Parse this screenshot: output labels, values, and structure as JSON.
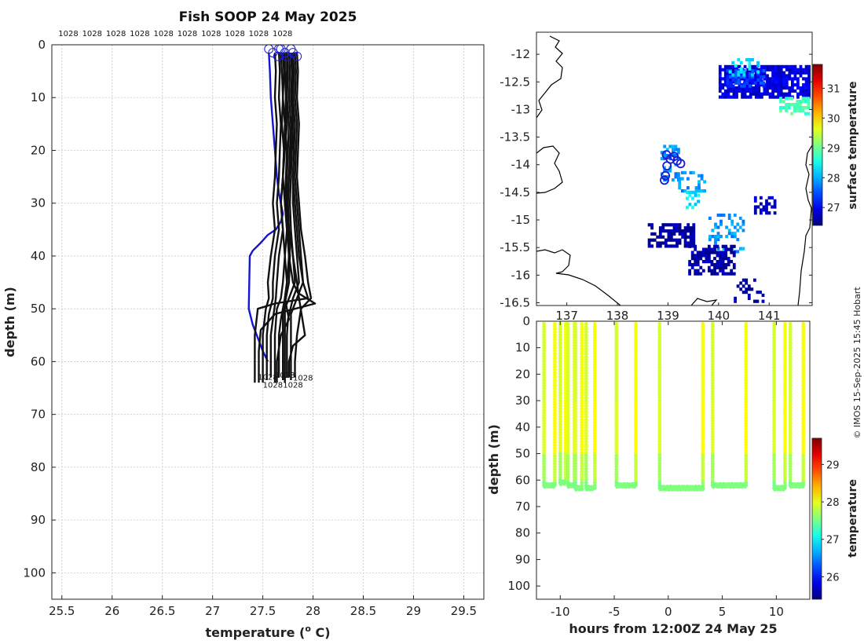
{
  "figure": {
    "title": "Fish SOOP 24 May 2025",
    "credit": "© IMOS 15-Sep-2025 15:45 Hobart"
  },
  "chart_data": [
    {
      "id": "profiles",
      "type": "line",
      "xlabel": "temperature (° C)",
      "xlabel_prefix": "temperature (",
      "xlabel_degree": "o",
      "xlabel_suffix": " C)",
      "ylabel": "depth (m)",
      "xlim": [
        25.4,
        29.7
      ],
      "ylim": [
        0,
        105
      ],
      "y_reversed": true,
      "grid": true,
      "xticks": [
        25.5,
        26,
        26.5,
        27,
        27.5,
        28,
        28.5,
        29,
        29.5
      ],
      "xtick_labels": [
        "25.5",
        "26",
        "26.5",
        "27",
        "27.5",
        "28",
        "28.5",
        "29",
        "29.5"
      ],
      "yticks": [
        0,
        10,
        20,
        30,
        40,
        50,
        60,
        70,
        80,
        90,
        100
      ],
      "ytick_labels": [
        "0",
        "10",
        "20",
        "30",
        "40",
        "50",
        "60",
        "70",
        "80",
        "90",
        "100"
      ],
      "top_labels": [
        "1028",
        "1028",
        "1028",
        "1028",
        "1028",
        "1028",
        "1028",
        "1028",
        "1028",
        "1028"
      ],
      "end_labels": [
        {
          "text": "1028",
          "t": 27.55,
          "d": 62.8
        },
        {
          "text": "1028",
          "t": 27.72,
          "d": 62.5
        },
        {
          "text": "1028",
          "t": 27.9,
          "d": 63.0
        },
        {
          "text": "1028",
          "t": 27.6,
          "d": 64.3
        },
        {
          "text": "1028",
          "t": 27.8,
          "d": 64.3
        }
      ],
      "series": [
        {
          "color": "#1515d4",
          "t": [
            27.56,
            27.57,
            27.58,
            27.6,
            27.62,
            27.64,
            27.66,
            27.68,
            27.7,
            27.68,
            27.63,
            27.55,
            27.48,
            27.4,
            27.37,
            27.36,
            27.4,
            27.46,
            27.5,
            27.55
          ],
          "d": [
            1.5,
            5,
            10,
            15,
            20,
            25,
            28,
            30,
            32,
            33.5,
            35,
            36,
            37.5,
            39,
            40,
            50,
            53,
            56,
            58,
            60
          ]
        },
        {
          "color": "#111111",
          "t": [
            27.62,
            27.63,
            27.62,
            27.64,
            27.63,
            27.62,
            27.6,
            27.62,
            27.58,
            27.55,
            27.56,
            27.53,
            27.5,
            27.5,
            27.5
          ],
          "d": [
            1.5,
            5,
            10,
            15,
            20,
            25,
            30,
            35,
            40,
            45,
            48,
            50,
            55,
            60,
            64
          ]
        },
        {
          "color": "#111111",
          "t": [
            27.66,
            27.67,
            27.66,
            27.68,
            27.67,
            27.66,
            27.64,
            27.66,
            27.62,
            27.6,
            27.6,
            27.56,
            27.54,
            27.54,
            27.54
          ],
          "d": [
            1.5,
            5,
            10,
            15,
            20,
            25,
            30,
            35,
            40,
            45,
            48,
            51,
            55,
            60,
            63.5
          ]
        },
        {
          "color": "#111111",
          "t": [
            27.7,
            27.71,
            27.7,
            27.72,
            27.71,
            27.7,
            27.68,
            27.7,
            27.66,
            27.64,
            27.63,
            27.6,
            27.58,
            27.58,
            27.58
          ],
          "d": [
            1.5,
            5,
            10,
            15,
            20,
            25,
            30,
            35,
            40,
            45,
            48,
            52,
            55,
            60,
            63
          ]
        },
        {
          "color": "#111111",
          "t": [
            27.72,
            27.72,
            27.73,
            27.72,
            27.74,
            27.73,
            27.72,
            27.74,
            27.72,
            27.7,
            27.68,
            27.64,
            27.62,
            27.62,
            27.62
          ],
          "d": [
            1.5,
            5,
            10,
            15,
            20,
            25,
            30,
            35,
            40,
            45,
            48,
            50,
            55,
            60,
            64
          ]
        },
        {
          "color": "#111111",
          "t": [
            27.74,
            27.75,
            27.74,
            27.76,
            27.75,
            27.74,
            27.73,
            27.75,
            27.76,
            27.74,
            27.72,
            27.68,
            27.66,
            27.66,
            27.66
          ],
          "d": [
            1.5,
            5,
            10,
            15,
            20,
            25,
            30,
            35,
            40,
            45,
            48,
            52,
            55,
            60,
            63
          ]
        },
        {
          "color": "#111111",
          "t": [
            27.76,
            27.77,
            27.76,
            27.78,
            27.77,
            27.76,
            27.75,
            27.76,
            27.77,
            27.76,
            27.73,
            27.7,
            27.7,
            27.7,
            27.7
          ],
          "d": [
            1.5,
            5,
            10,
            15,
            20,
            25,
            30,
            35,
            40,
            45,
            48,
            51,
            55,
            60,
            63.5
          ]
        },
        {
          "color": "#111111",
          "t": [
            27.78,
            27.79,
            27.78,
            27.8,
            27.79,
            27.78,
            27.77,
            27.78,
            27.8,
            27.82,
            27.76,
            27.72,
            27.72,
            27.72,
            27.72
          ],
          "d": [
            1.5,
            5,
            10,
            15,
            20,
            25,
            30,
            35,
            40,
            45,
            48,
            50,
            55,
            60,
            64
          ]
        },
        {
          "color": "#111111",
          "t": [
            27.8,
            27.81,
            27.8,
            27.82,
            27.81,
            27.8,
            27.8,
            27.82,
            27.84,
            27.86,
            27.8,
            27.75,
            27.74,
            27.74,
            27.74
          ],
          "d": [
            1.5,
            5,
            10,
            15,
            20,
            25,
            30,
            35,
            40,
            45,
            48,
            52,
            55,
            60,
            63
          ]
        },
        {
          "color": "#111111",
          "t": [
            27.82,
            27.83,
            27.82,
            27.84,
            27.83,
            27.82,
            27.84,
            27.86,
            27.88,
            27.9,
            27.84,
            27.78,
            27.78,
            27.78,
            27.78
          ],
          "d": [
            1.5,
            5,
            10,
            15,
            20,
            25,
            30,
            35,
            40,
            45,
            48,
            51,
            55,
            60,
            63.5
          ]
        },
        {
          "color": "#111111",
          "t": [
            27.84,
            27.85,
            27.84,
            27.86,
            27.85,
            27.84,
            27.86,
            27.88,
            27.92,
            27.95,
            27.98,
            27.88,
            27.84,
            27.82,
            27.82
          ],
          "d": [
            1.5,
            5,
            10,
            15,
            20,
            25,
            30,
            35,
            40,
            45,
            48,
            50,
            55,
            60,
            63
          ]
        },
        {
          "color": "#111111",
          "t": [
            27.78,
            27.79,
            27.8,
            27.79,
            27.81,
            27.8,
            27.82,
            27.84,
            27.86,
            27.9,
            27.95,
            27.62,
            27.45,
            27.42,
            27.42
          ],
          "d": [
            1.5,
            5,
            10,
            15,
            20,
            25,
            30,
            35,
            40,
            45,
            48,
            49,
            50,
            55,
            64
          ]
        },
        {
          "color": "#111111",
          "t": [
            27.68,
            27.69,
            27.7,
            27.69,
            27.71,
            27.7,
            27.72,
            27.74,
            27.76,
            27.8,
            27.85,
            28.02,
            27.62,
            27.48,
            27.46,
            27.46
          ],
          "d": [
            1.5,
            5,
            10,
            15,
            20,
            25,
            30,
            35,
            40,
            45,
            47,
            49,
            51,
            54,
            58,
            64
          ]
        },
        {
          "color": "#111111",
          "t": [
            27.74,
            27.74,
            27.73,
            27.74,
            27.72,
            27.7,
            27.68,
            27.7,
            27.72,
            27.74,
            27.72,
            27.76,
            27.68,
            27.64,
            27.64
          ],
          "d": [
            1.5,
            5,
            10,
            15,
            20,
            25,
            30,
            35,
            40,
            45,
            48,
            52,
            55,
            60,
            64
          ]
        },
        {
          "color": "#111111",
          "t": [
            27.8,
            27.8,
            27.79,
            27.8,
            27.78,
            27.76,
            27.74,
            27.76,
            27.8,
            27.84,
            27.86,
            27.92,
            27.8,
            27.76,
            27.76
          ],
          "d": [
            1.5,
            5,
            10,
            15,
            20,
            25,
            30,
            35,
            40,
            45,
            48,
            55,
            57,
            60,
            63
          ]
        }
      ],
      "surface_markers_t": [
        27.56,
        27.6,
        27.65,
        27.68,
        27.72,
        27.74,
        27.78,
        27.8,
        27.84,
        27.66
      ]
    },
    {
      "id": "map",
      "type": "heatmap",
      "colorbar_label": "surface temperature",
      "xlim": [
        136.4,
        141.85
      ],
      "ylim": [
        -16.55,
        -11.6
      ],
      "yticks": [
        -12,
        -12.5,
        -13,
        -13.5,
        -14,
        -14.5,
        -15,
        -15.5,
        -16,
        -16.5
      ],
      "ytick_labels": [
        "-12",
        "-12.5",
        "-13",
        "-13.5",
        "-14",
        "-14.5",
        "-15",
        "-15.5",
        "-16",
        "-16.5"
      ],
      "xticks": [
        137,
        138,
        139,
        140,
        141
      ],
      "xtick_labels": [
        "137",
        "138",
        "139",
        "140",
        "141"
      ],
      "cbar_range": [
        26.4,
        31.8
      ],
      "cbar_ticks": [
        27,
        28,
        29,
        30,
        31
      ],
      "cbar_tick_labels": [
        "27",
        "28",
        "29",
        "30",
        "31"
      ],
      "patches": [
        {
          "lon": [
            140.0,
            141.8
          ],
          "lat": [
            -12.8,
            -12.2
          ],
          "temp": 26.9,
          "density": 0.85
        },
        {
          "lon": [
            140.15,
            140.9
          ],
          "lat": [
            -12.6,
            -12.3
          ],
          "temp": 27.4,
          "density": 0.6
        },
        {
          "lon": [
            140.2,
            140.8
          ],
          "lat": [
            -12.4,
            -12.1
          ],
          "temp": 28.3,
          "density": 0.35
        },
        {
          "lon": [
            141.2,
            141.8
          ],
          "lat": [
            -13.1,
            -12.8
          ],
          "temp": 28.8,
          "density": 0.5
        },
        {
          "lon": [
            138.85,
            139.2
          ],
          "lat": [
            -14.3,
            -13.65
          ],
          "temp": 27.9,
          "density": 0.55
        },
        {
          "lon": [
            139.2,
            139.7
          ],
          "lat": [
            -14.5,
            -14.15
          ],
          "temp": 27.9,
          "density": 0.45
        },
        {
          "lon": [
            139.35,
            139.6
          ],
          "lat": [
            -14.8,
            -14.5
          ],
          "temp": 28.3,
          "density": 0.4
        },
        {
          "lon": [
            139.8,
            140.5
          ],
          "lat": [
            -15.6,
            -14.9
          ],
          "temp": 27.9,
          "density": 0.3
        },
        {
          "lon": [
            138.6,
            139.5
          ],
          "lat": [
            -15.5,
            -15.1
          ],
          "temp": 26.6,
          "density": 0.65
        },
        {
          "lon": [
            139.4,
            140.3
          ],
          "lat": [
            -16.0,
            -15.5
          ],
          "temp": 26.6,
          "density": 0.7
        },
        {
          "lon": [
            140.7,
            141.1
          ],
          "lat": [
            -14.9,
            -14.6
          ],
          "temp": 26.8,
          "density": 0.55
        },
        {
          "lon": [
            140.3,
            140.9
          ],
          "lat": [
            -16.5,
            -16.1
          ],
          "temp": 26.6,
          "density": 0.3
        }
      ],
      "track": [
        {
          "lon": 138.93,
          "lat": -14.28
        },
        {
          "lon": 138.95,
          "lat": -14.2
        },
        {
          "lon": 138.98,
          "lat": -14.02
        },
        {
          "lon": 139.05,
          "lat": -13.9
        },
        {
          "lon": 139.18,
          "lat": -13.93
        },
        {
          "lon": 139.25,
          "lat": -13.98
        },
        {
          "lon": 139.12,
          "lat": -13.85
        },
        {
          "lon": 138.97,
          "lat": -13.82
        }
      ]
    },
    {
      "id": "section",
      "type": "scatter",
      "xlabel": "hours from 12:00Z 24 May 25",
      "ylabel": "depth (m)",
      "colorbar_label": "temperature",
      "xlim": [
        -12.2,
        13.1
      ],
      "ylim": [
        0,
        105
      ],
      "y_reversed": true,
      "xticks": [
        -10,
        -5,
        0,
        5,
        10
      ],
      "xtick_labels": [
        "-10",
        "-5",
        "0",
        "5",
        "10"
      ],
      "yticks": [
        0,
        10,
        20,
        30,
        40,
        50,
        60,
        70,
        80,
        90,
        100
      ],
      "ytick_labels": [
        "0",
        "10",
        "20",
        "30",
        "40",
        "50",
        "60",
        "70",
        "80",
        "90",
        "100"
      ],
      "cbar_range": [
        25.4,
        29.7
      ],
      "cbar_ticks": [
        26,
        27,
        28,
        29
      ],
      "cbar_tick_labels": [
        "26",
        "27",
        "28",
        "29"
      ],
      "casts": [
        {
          "x_down": -11.5,
          "x_up": -10.5,
          "bottom": 62
        },
        {
          "x_down": -10.0,
          "x_up": -9.5,
          "bottom": 61
        },
        {
          "x_down": -9.3,
          "x_up": -8.7,
          "bottom": 62
        },
        {
          "x_down": -8.6,
          "x_up": -8.0,
          "bottom": 63
        },
        {
          "x_down": -7.6,
          "x_up": -6.8,
          "bottom": 63
        },
        {
          "x_down": -4.8,
          "x_up": -3.0,
          "bottom": 62
        },
        {
          "x_down": -0.8,
          "x_up": 3.2,
          "bottom": 63
        },
        {
          "x_down": 4.1,
          "x_up": 7.2,
          "bottom": 62
        },
        {
          "x_down": 9.8,
          "x_up": 10.8,
          "bottom": 63
        },
        {
          "x_down": 11.3,
          "x_up": 12.5,
          "bottom": 62
        }
      ]
    }
  ]
}
